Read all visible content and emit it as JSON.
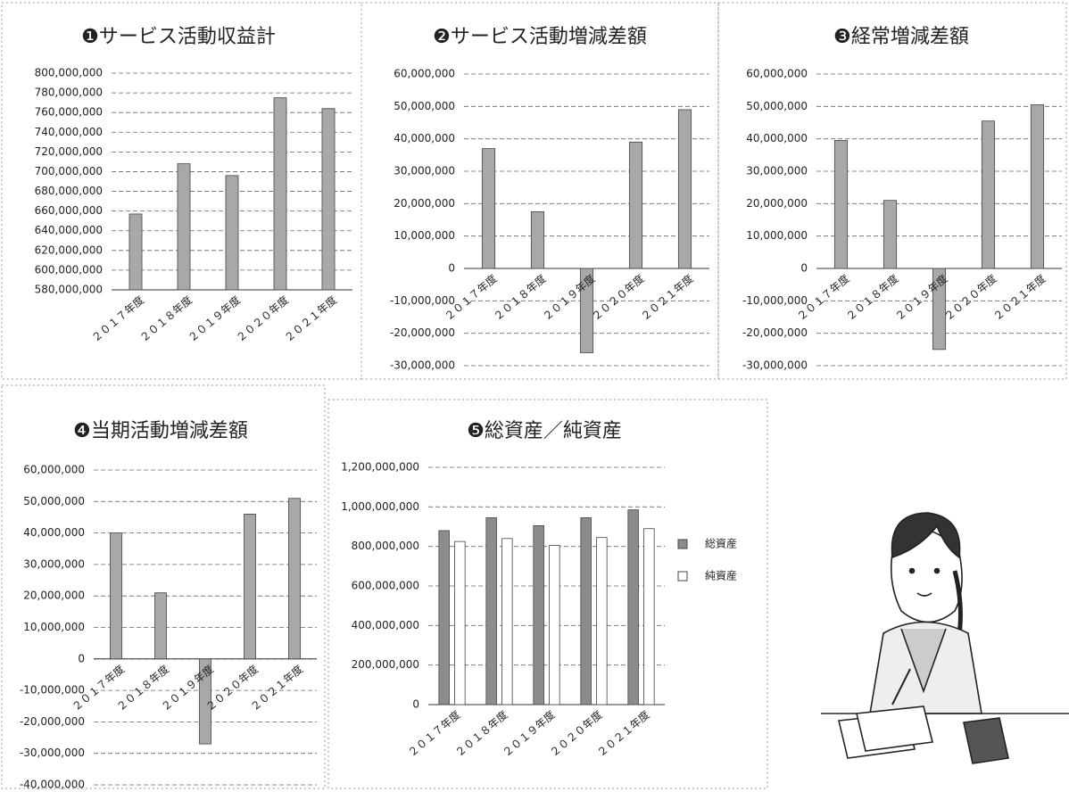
{
  "chart_data": [
    {
      "type": "bar",
      "title": "❶サービス活動収益計",
      "categories": [
        "２０１７年度",
        "２０１８年度",
        "２０１９年度",
        "２０２０年度",
        "２０２１年度"
      ],
      "values": [
        657000000,
        708000000,
        696000000,
        775000000,
        764000000
      ],
      "color": "#a8a8a8",
      "ylim": [
        580000000,
        800000000
      ],
      "yticks": [
        {
          "value": 580000000,
          "label": "580,000,000"
        },
        {
          "value": 600000000,
          "label": "600,000,000"
        },
        {
          "value": 620000000,
          "label": "620,000,000"
        },
        {
          "value": 640000000,
          "label": "640,000,000"
        },
        {
          "value": 660000000,
          "label": "660,000,000"
        },
        {
          "value": 680000000,
          "label": "680,000,000"
        },
        {
          "value": 700000000,
          "label": "700,000,000"
        },
        {
          "value": 720000000,
          "label": "720,000,000"
        },
        {
          "value": 740000000,
          "label": "740,000,000"
        },
        {
          "value": 760000000,
          "label": "760,000,000"
        },
        {
          "value": 780000000,
          "label": "780,000,000"
        },
        {
          "value": 800000000,
          "label": "800,000,000"
        }
      ],
      "grid": true
    },
    {
      "type": "bar",
      "title": "❷サービス活動増減差額",
      "categories": [
        "２０１７年度",
        "２０１８年度",
        "２０１９年度",
        "２０２０年度",
        "２０２１年度"
      ],
      "values": [
        37000000,
        17500000,
        -26000000,
        39000000,
        49000000
      ],
      "color": "#a8a8a8",
      "ylim": [
        -30000000,
        60000000
      ],
      "yticks": [
        {
          "value": -30000000,
          "label": "-30,000,000"
        },
        {
          "value": -20000000,
          "label": "-20,000,000"
        },
        {
          "value": -10000000,
          "label": "-10,000,000"
        },
        0,
        {
          "value": 10000000,
          "label": "10,000,000"
        },
        {
          "value": 20000000,
          "label": "20,000,000"
        },
        {
          "value": 30000000,
          "label": "30,000,000"
        },
        {
          "value": 40000000,
          "label": "40,000,000"
        },
        {
          "value": 50000000,
          "label": "50,000,000"
        },
        {
          "value": 60000000,
          "label": "60,000,000"
        }
      ],
      "grid": true
    },
    {
      "type": "bar",
      "title": "❸経常増減差額",
      "categories": [
        "２０１７年度",
        "２０１８年度",
        "２０１９年度",
        "２０２０年度",
        "２０２１年度"
      ],
      "values": [
        39500000,
        21000000,
        -25000000,
        45500000,
        50500000
      ],
      "color": "#a8a8a8",
      "ylim": [
        -30000000,
        60000000
      ],
      "yticks": [
        {
          "value": -30000000,
          "label": "-30,000,000"
        },
        {
          "value": -20000000,
          "label": "-20,000,000"
        },
        {
          "value": -10000000,
          "label": "-10,000,000"
        },
        0,
        {
          "value": 10000000,
          "label": "10,000,000"
        },
        {
          "value": 20000000,
          "label": "20,000,000"
        },
        {
          "value": 30000000,
          "label": "30,000,000"
        },
        {
          "value": 40000000,
          "label": "40,000,000"
        },
        {
          "value": 50000000,
          "label": "50,000,000"
        },
        {
          "value": 60000000,
          "label": "60,000,000"
        }
      ],
      "grid": true
    },
    {
      "type": "bar",
      "title": "❹当期活動増減差額",
      "categories": [
        "２０１７年度",
        "２０１８年度",
        "２０１９年度",
        "２０２０年度",
        "２０２１年度"
      ],
      "values": [
        40000000,
        21000000,
        -27000000,
        46000000,
        51000000
      ],
      "color": "#a8a8a8",
      "ylim": [
        -40000000,
        60000000
      ],
      "yticks": [
        {
          "value": -40000000,
          "label": "-40,000,000"
        },
        {
          "value": -30000000,
          "label": "-30,000,000"
        },
        {
          "value": -20000000,
          "label": "-20,000,000"
        },
        {
          "value": -10000000,
          "label": "-10,000,000"
        },
        0,
        {
          "value": 10000000,
          "label": "10,000,000"
        },
        {
          "value": 20000000,
          "label": "20,000,000"
        },
        {
          "value": 30000000,
          "label": "30,000,000"
        },
        {
          "value": 40000000,
          "label": "40,000,000"
        },
        {
          "value": 50000000,
          "label": "50,000,000"
        },
        {
          "value": 60000000,
          "label": "60,000,000"
        }
      ],
      "grid": true
    },
    {
      "type": "bar",
      "title": "❺総資産／純資産",
      "categories": [
        "２０１７年度",
        "２０１８年度",
        "２０１９年度",
        "２０２０年度",
        "２０２１年度"
      ],
      "series": [
        {
          "name": "総資産",
          "color": "#8c8c8c",
          "values": [
            880000000,
            945000000,
            905000000,
            945000000,
            985000000
          ]
        },
        {
          "name": "純資産",
          "color": "#ffffff",
          "values": [
            825000000,
            840000000,
            805000000,
            845000000,
            890000000
          ]
        }
      ],
      "ylim": [
        0,
        1200000000
      ],
      "yticks": [
        0,
        {
          "value": 200000000,
          "label": "200,000,000"
        },
        {
          "value": 400000000,
          "label": "400,000,000"
        },
        {
          "value": 600000000,
          "label": "600,000,000"
        },
        {
          "value": 800000000,
          "label": "800,000,000"
        },
        {
          "value": 1000000000,
          "label": "1,000,000,000"
        },
        {
          "value": 1200000000,
          "label": "1,200,000,000"
        }
      ],
      "grid": true,
      "legend": "right"
    }
  ]
}
